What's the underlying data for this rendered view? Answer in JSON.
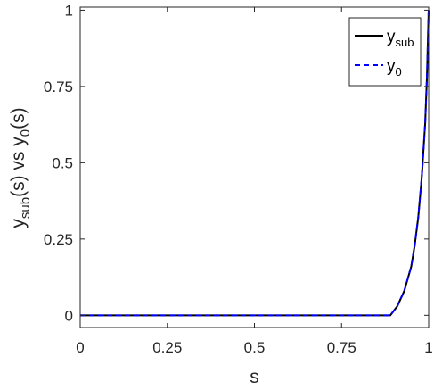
{
  "chart_data": {
    "type": "line",
    "xlabel": "s",
    "ylabel": {
      "base": "y",
      "sub": "sub",
      "rest": "(s) vs y",
      "sub2": "0",
      "end": "(s)"
    },
    "xlim": [
      0,
      1
    ],
    "ylim": [
      -0.04,
      1.01
    ],
    "xticks": [
      0,
      0.25,
      0.5,
      0.75,
      1
    ],
    "xtick_labels": [
      "0",
      "0.25",
      "0.5",
      "0.75",
      "1"
    ],
    "yticks": [
      0,
      0.25,
      0.5,
      0.75,
      1
    ],
    "ytick_labels": [
      "0",
      "0.25",
      "0.5",
      "0.75",
      "1"
    ],
    "grid": false,
    "legend_position": "top-right",
    "series": [
      {
        "name": {
          "base": "y",
          "sub": "sub"
        },
        "color": "#000000",
        "style": "solid",
        "x": [
          0,
          0.1,
          0.2,
          0.3,
          0.4,
          0.5,
          0.6,
          0.7,
          0.8,
          0.89,
          0.91,
          0.93,
          0.95,
          0.96,
          0.97,
          0.98,
          0.99,
          0.995,
          1.0
        ],
        "y": [
          0,
          0,
          0,
          0,
          0,
          0,
          0,
          0,
          0,
          0,
          0.03,
          0.08,
          0.16,
          0.23,
          0.32,
          0.45,
          0.63,
          0.78,
          1.0
        ]
      },
      {
        "name": {
          "base": "y",
          "sub": "0"
        },
        "color": "#0000ff",
        "style": "dashed",
        "x": [
          0,
          0.1,
          0.2,
          0.3,
          0.4,
          0.5,
          0.6,
          0.7,
          0.8,
          0.89,
          0.91,
          0.93,
          0.95,
          0.96,
          0.97,
          0.98,
          0.99,
          0.995,
          1.0
        ],
        "y": [
          0,
          0,
          0,
          0,
          0,
          0,
          0,
          0,
          0,
          0,
          0.03,
          0.08,
          0.16,
          0.23,
          0.32,
          0.45,
          0.63,
          0.78,
          1.0
        ]
      }
    ]
  }
}
